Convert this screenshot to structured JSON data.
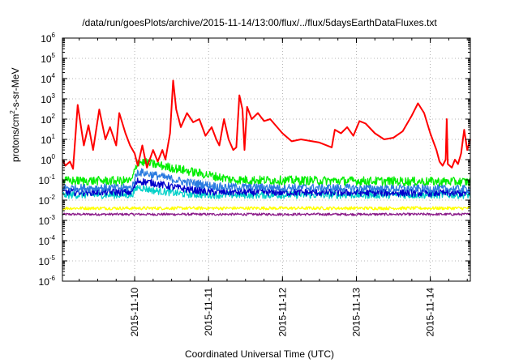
{
  "chart_data": {
    "type": "line",
    "title": "/data/run/goesPlots/archive/2015-11-14/13:00/flux/../flux/5daysEarthDataFluxes.txt",
    "xlabel": "Coordinated Universal Time (UTC)",
    "ylabel": {
      "pre": "protons/cm",
      "sup": "2",
      "post": "-s-sr-MeV"
    },
    "yscale": "log",
    "ylim": [
      1e-06,
      1000000.0
    ],
    "yticks": [
      {
        "exp": -6,
        "base": "10",
        "sup": "-6"
      },
      {
        "exp": -5,
        "base": "10",
        "sup": "-5"
      },
      {
        "exp": -4,
        "base": "10",
        "sup": "-4"
      },
      {
        "exp": -3,
        "base": "10",
        "sup": "-3"
      },
      {
        "exp": -2,
        "base": "10",
        "sup": "-2"
      },
      {
        "exp": -1,
        "base": "10",
        "sup": "-1"
      },
      {
        "exp": 0,
        "base": "10",
        "sup": "0"
      },
      {
        "exp": 1,
        "base": "10",
        "sup": "1"
      },
      {
        "exp": 2,
        "base": "10",
        "sup": "2"
      },
      {
        "exp": 3,
        "base": "10",
        "sup": "3"
      },
      {
        "exp": 4,
        "base": "10",
        "sup": "4"
      },
      {
        "exp": 5,
        "base": "10",
        "sup": "5"
      },
      {
        "exp": 6,
        "base": "10",
        "sup": "6"
      }
    ],
    "xlim": [
      "2015-11-09T00:33",
      "2015-11-14T13:00"
    ],
    "xticks": [
      "2015-11-10",
      "2015-11-11",
      "2015-11-12",
      "2015-11-13",
      "2015-11-14"
    ],
    "grid": true,
    "series": [
      {
        "color": "#8b1a89",
        "noise": 0.06,
        "points": [
          [
            "2015-11-09T00:33",
            0.002
          ],
          [
            "2015-11-14T13:00",
            0.002
          ]
        ]
      },
      {
        "color": "#ffff00",
        "noise": 0.08,
        "points": [
          [
            "2015-11-09T00:33",
            0.004
          ],
          [
            "2015-11-14T13:00",
            0.004
          ]
        ]
      },
      {
        "color": "#00d0c8",
        "noise": 0.18,
        "points": [
          [
            "2015-11-09T00:33",
            0.018
          ],
          [
            "2015-11-09T23:00",
            0.018
          ],
          [
            "2015-11-10T01:00",
            0.045
          ],
          [
            "2015-11-10T06:00",
            0.03
          ],
          [
            "2015-11-10T16:00",
            0.02
          ],
          [
            "2015-11-11T00:00",
            0.018
          ],
          [
            "2015-11-14T13:00",
            0.018
          ]
        ]
      },
      {
        "color": "#0000cc",
        "noise": 0.18,
        "points": [
          [
            "2015-11-09T00:33",
            0.025
          ],
          [
            "2015-11-09T23:00",
            0.025
          ],
          [
            "2015-11-10T01:00",
            0.09
          ],
          [
            "2015-11-10T06:00",
            0.07
          ],
          [
            "2015-11-10T14:00",
            0.04
          ],
          [
            "2015-11-11T00:00",
            0.025
          ],
          [
            "2015-11-14T13:00",
            0.022
          ]
        ]
      },
      {
        "color": "#2b7be0",
        "noise": 0.2,
        "points": [
          [
            "2015-11-09T00:33",
            0.04
          ],
          [
            "2015-11-09T23:00",
            0.04
          ],
          [
            "2015-11-10T01:00",
            0.25
          ],
          [
            "2015-11-10T06:00",
            0.18
          ],
          [
            "2015-11-10T16:00",
            0.08
          ],
          [
            "2015-11-11T04:00",
            0.045
          ],
          [
            "2015-11-14T13:00",
            0.035
          ]
        ]
      },
      {
        "color": "#00ee00",
        "noise": 0.22,
        "points": [
          [
            "2015-11-09T00:33",
            0.09
          ],
          [
            "2015-11-09T23:00",
            0.09
          ],
          [
            "2015-11-10T01:00",
            0.8
          ],
          [
            "2015-11-10T06:00",
            0.6
          ],
          [
            "2015-11-10T16:00",
            0.3
          ],
          [
            "2015-11-11T02:00",
            0.15
          ],
          [
            "2015-11-11T08:00",
            0.1
          ],
          [
            "2015-11-14T13:00",
            0.08
          ]
        ]
      },
      {
        "color": "#ff0000",
        "noise": 0,
        "points": [
          [
            "2015-11-09T00:33",
            1.0
          ],
          [
            "2015-11-09T01:30",
            0.5
          ],
          [
            "2015-11-09T03:00",
            0.8
          ],
          [
            "2015-11-09T04:00",
            0.35
          ],
          [
            "2015-11-09T05:30",
            500
          ],
          [
            "2015-11-09T07:30",
            5
          ],
          [
            "2015-11-09T09:00",
            50
          ],
          [
            "2015-11-09T10:30",
            3
          ],
          [
            "2015-11-09T12:30",
            300
          ],
          [
            "2015-11-09T14:30",
            10
          ],
          [
            "2015-11-09T16:00",
            40
          ],
          [
            "2015-11-09T18:00",
            5
          ],
          [
            "2015-11-09T19:00",
            200
          ],
          [
            "2015-11-09T21:00",
            20
          ],
          [
            "2015-11-09T22:30",
            5
          ],
          [
            "2015-11-10T00:00",
            2
          ],
          [
            "2015-11-10T01:00",
            0.5
          ],
          [
            "2015-11-10T02:30",
            5
          ],
          [
            "2015-11-10T04:00",
            0.4
          ],
          [
            "2015-11-10T06:00",
            3
          ],
          [
            "2015-11-10T07:30",
            0.8
          ],
          [
            "2015-11-10T09:00",
            3
          ],
          [
            "2015-11-10T10:00",
            1
          ],
          [
            "2015-11-10T11:30",
            20
          ],
          [
            "2015-11-10T12:30",
            8000
          ],
          [
            "2015-11-10T13:30",
            300
          ],
          [
            "2015-11-10T15:00",
            40
          ],
          [
            "2015-11-10T17:00",
            200
          ],
          [
            "2015-11-10T19:00",
            70
          ],
          [
            "2015-11-10T21:00",
            100
          ],
          [
            "2015-11-10T23:00",
            15
          ],
          [
            "2015-11-11T01:00",
            40
          ],
          [
            "2015-11-11T02:30",
            10
          ],
          [
            "2015-11-11T03:30",
            5
          ],
          [
            "2015-11-11T05:00",
            100
          ],
          [
            "2015-11-11T06:30",
            10
          ],
          [
            "2015-11-11T08:00",
            3
          ],
          [
            "2015-11-11T09:00",
            4
          ],
          [
            "2015-11-11T10:00",
            1500
          ],
          [
            "2015-11-11T11:00",
            300
          ],
          [
            "2015-11-11T11:40",
            3
          ],
          [
            "2015-11-11T12:30",
            400
          ],
          [
            "2015-11-11T14:00",
            100
          ],
          [
            "2015-11-11T16:00",
            200
          ],
          [
            "2015-11-11T18:00",
            80
          ],
          [
            "2015-11-11T20:00",
            100
          ],
          [
            "2015-11-12T00:00",
            20
          ],
          [
            "2015-11-12T03:00",
            8
          ],
          [
            "2015-11-12T06:00",
            10
          ],
          [
            "2015-11-12T12:00",
            7
          ],
          [
            "2015-11-12T16:00",
            4
          ],
          [
            "2015-11-12T17:00",
            30
          ],
          [
            "2015-11-12T19:00",
            20
          ],
          [
            "2015-11-12T21:00",
            40
          ],
          [
            "2015-11-12T23:00",
            15
          ],
          [
            "2015-11-13T01:00",
            80
          ],
          [
            "2015-11-13T03:00",
            60
          ],
          [
            "2015-11-13T06:00",
            20
          ],
          [
            "2015-11-13T09:00",
            10
          ],
          [
            "2015-11-13T12:00",
            12
          ],
          [
            "2015-11-13T15:00",
            25
          ],
          [
            "2015-11-13T18:00",
            150
          ],
          [
            "2015-11-13T20:00",
            600
          ],
          [
            "2015-11-13T22:00",
            200
          ],
          [
            "2015-11-14T00:00",
            20
          ],
          [
            "2015-11-14T02:00",
            3
          ],
          [
            "2015-11-14T03:00",
            0.8
          ],
          [
            "2015-11-14T04:00",
            0.5
          ],
          [
            "2015-11-14T05:00",
            1.0
          ],
          [
            "2015-11-14T05:20",
            100
          ],
          [
            "2015-11-14T05:40",
            0.6
          ],
          [
            "2015-11-14T07:00",
            0.4
          ],
          [
            "2015-11-14T08:00",
            1.0
          ],
          [
            "2015-11-14T09:00",
            0.6
          ],
          [
            "2015-11-14T10:00",
            2
          ],
          [
            "2015-11-14T11:00",
            30
          ],
          [
            "2015-11-14T12:00",
            3
          ],
          [
            "2015-11-14T13:00",
            10
          ]
        ]
      }
    ]
  }
}
